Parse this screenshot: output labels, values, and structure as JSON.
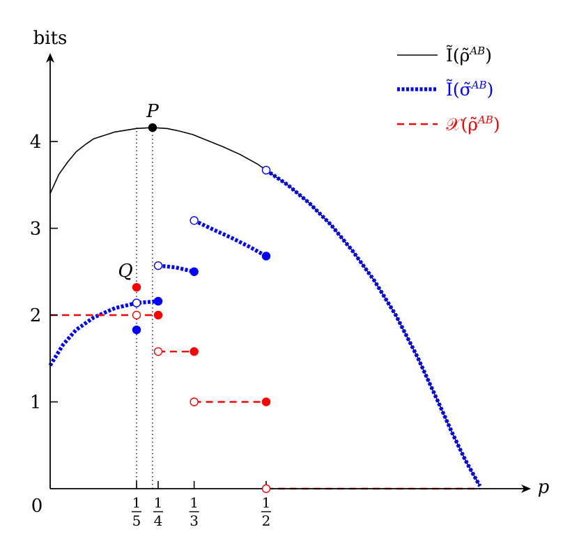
{
  "chart_data": {
    "type": "line",
    "ylabel": "bits",
    "xlabel": "p",
    "origin_label": "0",
    "xlim": [
      0,
      1.05
    ],
    "ylim": [
      0,
      4.6
    ],
    "x_ticks": [
      {
        "value": 0.2,
        "num": "1",
        "den": "5"
      },
      {
        "value": 0.25,
        "num": "1",
        "den": "4"
      },
      {
        "value": 0.3333,
        "num": "1",
        "den": "3"
      },
      {
        "value": 0.5,
        "num": "1",
        "den": "2"
      }
    ],
    "y_ticks": [
      {
        "value": 1,
        "label": "1"
      },
      {
        "value": 2,
        "label": "2"
      },
      {
        "value": 3,
        "label": "3"
      },
      {
        "value": 4,
        "label": "4"
      }
    ],
    "legend": {
      "position": "top-right",
      "entries": [
        {
          "series": "I_rho",
          "label_main": "Ĩ(ρ̃",
          "label_sup": "AB",
          "label_end": ")",
          "color": "#000000",
          "style": "solid"
        },
        {
          "series": "I_sigma",
          "label_main": "Ĩ(σ̃",
          "label_sup": "AB",
          "label_end": ")",
          "color": "#0000ff",
          "style": "dotted-thick"
        },
        {
          "series": "X_rho",
          "label_main": "𝒳(ρ̃",
          "label_sup": "AB",
          "label_end": ")",
          "color": "#ff0000",
          "style": "dashed"
        }
      ]
    },
    "series": [
      {
        "id": "I_rho",
        "color": "#000000",
        "style": "solid",
        "x": [
          0.0,
          0.02,
          0.04,
          0.06,
          0.08,
          0.1,
          0.125,
          0.15,
          0.175,
          0.2,
          0.237,
          0.27,
          0.3,
          0.33,
          0.36,
          0.4,
          0.44,
          0.48,
          0.5,
          0.55,
          0.6,
          0.65,
          0.7,
          0.75,
          0.8,
          0.85,
          0.9,
          0.93,
          0.96,
          0.98,
          0.995
        ],
        "y": [
          3.4,
          3.62,
          3.76,
          3.88,
          3.96,
          4.03,
          4.07,
          4.11,
          4.13,
          4.15,
          4.16,
          4.15,
          4.12,
          4.08,
          4.02,
          3.94,
          3.85,
          3.74,
          3.67,
          3.5,
          3.29,
          3.04,
          2.74,
          2.4,
          2.0,
          1.52,
          0.98,
          0.65,
          0.34,
          0.16,
          0.03
        ]
      },
      {
        "id": "I_sigma",
        "color": "#0000ff",
        "style": "dotted-thick",
        "segments": [
          {
            "x": [
              0.0,
              0.03,
              0.06,
              0.1,
              0.15,
              0.2,
              0.25
            ],
            "y": [
              1.42,
              1.66,
              1.83,
              1.97,
              2.08,
              2.14,
              2.16
            ]
          },
          {
            "x": [
              0.25,
              0.29,
              0.3333
            ],
            "y": [
              2.57,
              2.55,
              2.5
            ]
          },
          {
            "x": [
              0.3333,
              0.38,
              0.42,
              0.46,
              0.5
            ],
            "y": [
              3.09,
              2.98,
              2.89,
              2.79,
              2.68
            ]
          },
          {
            "x": [
              0.5,
              0.55,
              0.6,
              0.65,
              0.7,
              0.75,
              0.8,
              0.85,
              0.9,
              0.93,
              0.96,
              0.98,
              0.995
            ],
            "y": [
              3.67,
              3.5,
              3.29,
              3.04,
              2.74,
              2.4,
              2.0,
              1.52,
              0.98,
              0.65,
              0.34,
              0.16,
              0.03
            ]
          }
        ]
      },
      {
        "id": "X_rho",
        "color": "#ff0000",
        "style": "dashed",
        "segments": [
          {
            "x": [
              0.0,
              0.25
            ],
            "y": [
              2.0,
              2.0
            ]
          },
          {
            "x": [
              0.25,
              0.3333
            ],
            "y": [
              1.58,
              1.58
            ]
          },
          {
            "x": [
              0.3333,
              0.5
            ],
            "y": [
              1.0,
              1.0
            ]
          },
          {
            "x": [
              0.5,
              0.995
            ],
            "y": [
              0.0,
              0.0
            ]
          }
        ]
      }
    ],
    "markers": [
      {
        "x": 0.237,
        "y": 4.16,
        "color": "#000000",
        "filled": true,
        "label": "P"
      },
      {
        "x": 0.2,
        "y": 2.32,
        "color": "#ff0000",
        "filled": true,
        "label": "Q"
      },
      {
        "x": 0.2,
        "y": 2.14,
        "color": "#0000ff",
        "filled": false
      },
      {
        "x": 0.2,
        "y": 1.83,
        "color": "#0000ff",
        "filled": true
      },
      {
        "x": 0.2,
        "y": 2.0,
        "color": "#ff0000",
        "filled": false
      },
      {
        "x": 0.25,
        "y": 2.16,
        "color": "#0000ff",
        "filled": true
      },
      {
        "x": 0.25,
        "y": 2.0,
        "color": "#ff0000",
        "filled": true
      },
      {
        "x": 0.25,
        "y": 2.57,
        "color": "#0000ff",
        "filled": false
      },
      {
        "x": 0.25,
        "y": 1.58,
        "color": "#ff0000",
        "filled": false
      },
      {
        "x": 0.3333,
        "y": 2.5,
        "color": "#0000ff",
        "filled": true
      },
      {
        "x": 0.3333,
        "y": 1.58,
        "color": "#ff0000",
        "filled": true
      },
      {
        "x": 0.3333,
        "y": 3.09,
        "color": "#0000ff",
        "filled": false
      },
      {
        "x": 0.3333,
        "y": 1.0,
        "color": "#ff0000",
        "filled": false
      },
      {
        "x": 0.5,
        "y": 2.68,
        "color": "#0000ff",
        "filled": true
      },
      {
        "x": 0.5,
        "y": 1.0,
        "color": "#ff0000",
        "filled": true
      },
      {
        "x": 0.5,
        "y": 3.67,
        "color": "#0000ff",
        "filled": false
      },
      {
        "x": 0.5,
        "y": 0.0,
        "color": "#ff0000",
        "filled": false
      }
    ],
    "guides": [
      {
        "x": 0.2,
        "y_top": 4.16,
        "style": "dotted"
      },
      {
        "x": 0.237,
        "y_top": 4.16,
        "style": "dotted"
      }
    ]
  }
}
